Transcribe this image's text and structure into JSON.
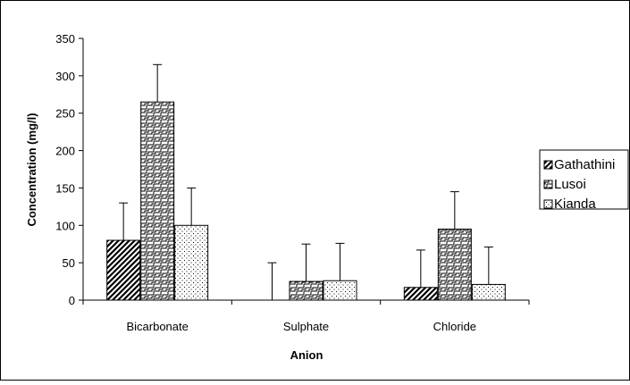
{
  "chart_data": {
    "type": "bar",
    "title": "",
    "xlabel": "Anion",
    "ylabel": "Concentration (mg/l)",
    "categories": [
      "Bicarbonate",
      "Sulphate",
      "Chloride"
    ],
    "ylim": [
      0,
      350
    ],
    "yticks": [
      0,
      50,
      100,
      150,
      200,
      250,
      300,
      350
    ],
    "grid": false,
    "legend_position": "right",
    "error_bars": true,
    "series": [
      {
        "name": "Gathathini",
        "pattern": "diagonal-hatch",
        "values": [
          80,
          0,
          17
        ],
        "errors": [
          50,
          50,
          50
        ]
      },
      {
        "name": "Lusoi",
        "pattern": "weave",
        "values": [
          265,
          25,
          95
        ],
        "errors": [
          50,
          50,
          50
        ]
      },
      {
        "name": "Kianda",
        "pattern": "dots",
        "values": [
          100,
          26,
          21
        ],
        "errors": [
          50,
          50,
          50
        ]
      }
    ]
  }
}
